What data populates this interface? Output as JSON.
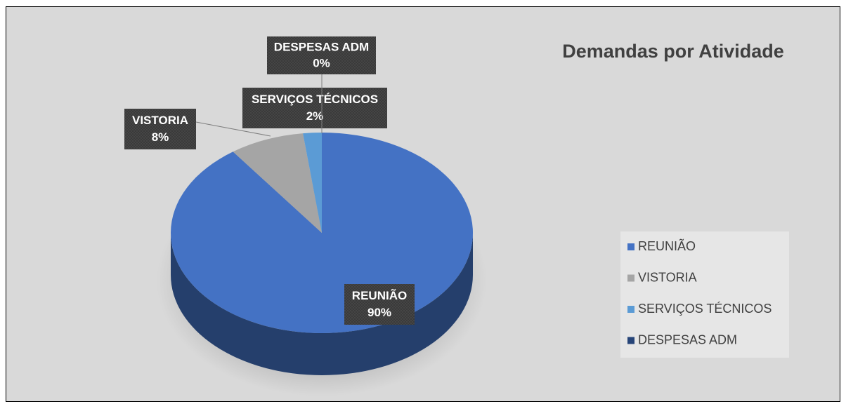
{
  "chart_data": {
    "type": "pie",
    "title": "Demandas por Atividade",
    "categories": [
      "REUNIÃO",
      "VISTORIA",
      "SERVIÇOS TÉCNICOS",
      "DESPESAS ADM"
    ],
    "values": [
      90,
      8,
      2,
      0
    ],
    "value_labels": [
      "90%",
      "8%",
      "2%",
      "0%"
    ],
    "colors": [
      "#4472c4",
      "#a5a5a5",
      "#5b9bd5",
      "#264478"
    ],
    "legend": "right"
  }
}
